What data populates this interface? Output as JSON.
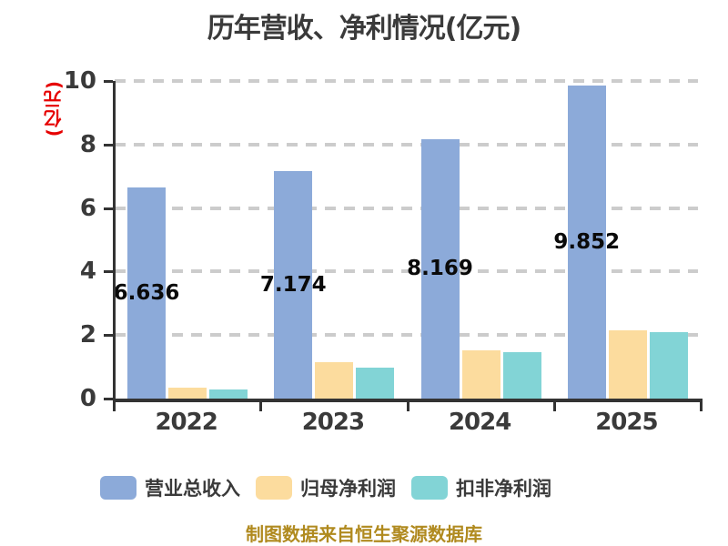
{
  "title": "历年营收、净利情况(亿元)",
  "y_axis_label": "(亿元)",
  "source_note": "制图数据来自恒生聚源数据库",
  "colors": {
    "background": "#ffffff",
    "title_text": "#3a3a3a",
    "axis": "#333333",
    "tick_text": "#3a3a3a",
    "gridline": "#cccccc",
    "y_axis_label_text": "#e60000",
    "data_label_text": "#0a0a0a",
    "source_text": "#b08a1f"
  },
  "chart_data": {
    "type": "bar",
    "title": "历年营收、净利情况(亿元)",
    "xlabel": "",
    "ylabel": "(亿元)",
    "categories": [
      "2022",
      "2023",
      "2024",
      "2025"
    ],
    "series": [
      {
        "name": "营业总收入",
        "color": "#8caad9",
        "values": [
          6.636,
          7.174,
          8.169,
          9.852
        ],
        "labels": [
          "6.636",
          "7.174",
          "8.169",
          "9.852"
        ]
      },
      {
        "name": "归母净利润",
        "color": "#fcdc9e",
        "values": [
          0.33,
          1.14,
          1.51,
          2.15
        ]
      },
      {
        "name": "扣非净利润",
        "color": "#82d4d6",
        "values": [
          0.29,
          0.98,
          1.46,
          2.1
        ]
      }
    ],
    "ylim": [
      0,
      10
    ],
    "y_ticks": [
      0,
      2,
      4,
      6,
      8,
      10
    ],
    "grid": "horizontal-dashed",
    "legend_position": "bottom"
  }
}
